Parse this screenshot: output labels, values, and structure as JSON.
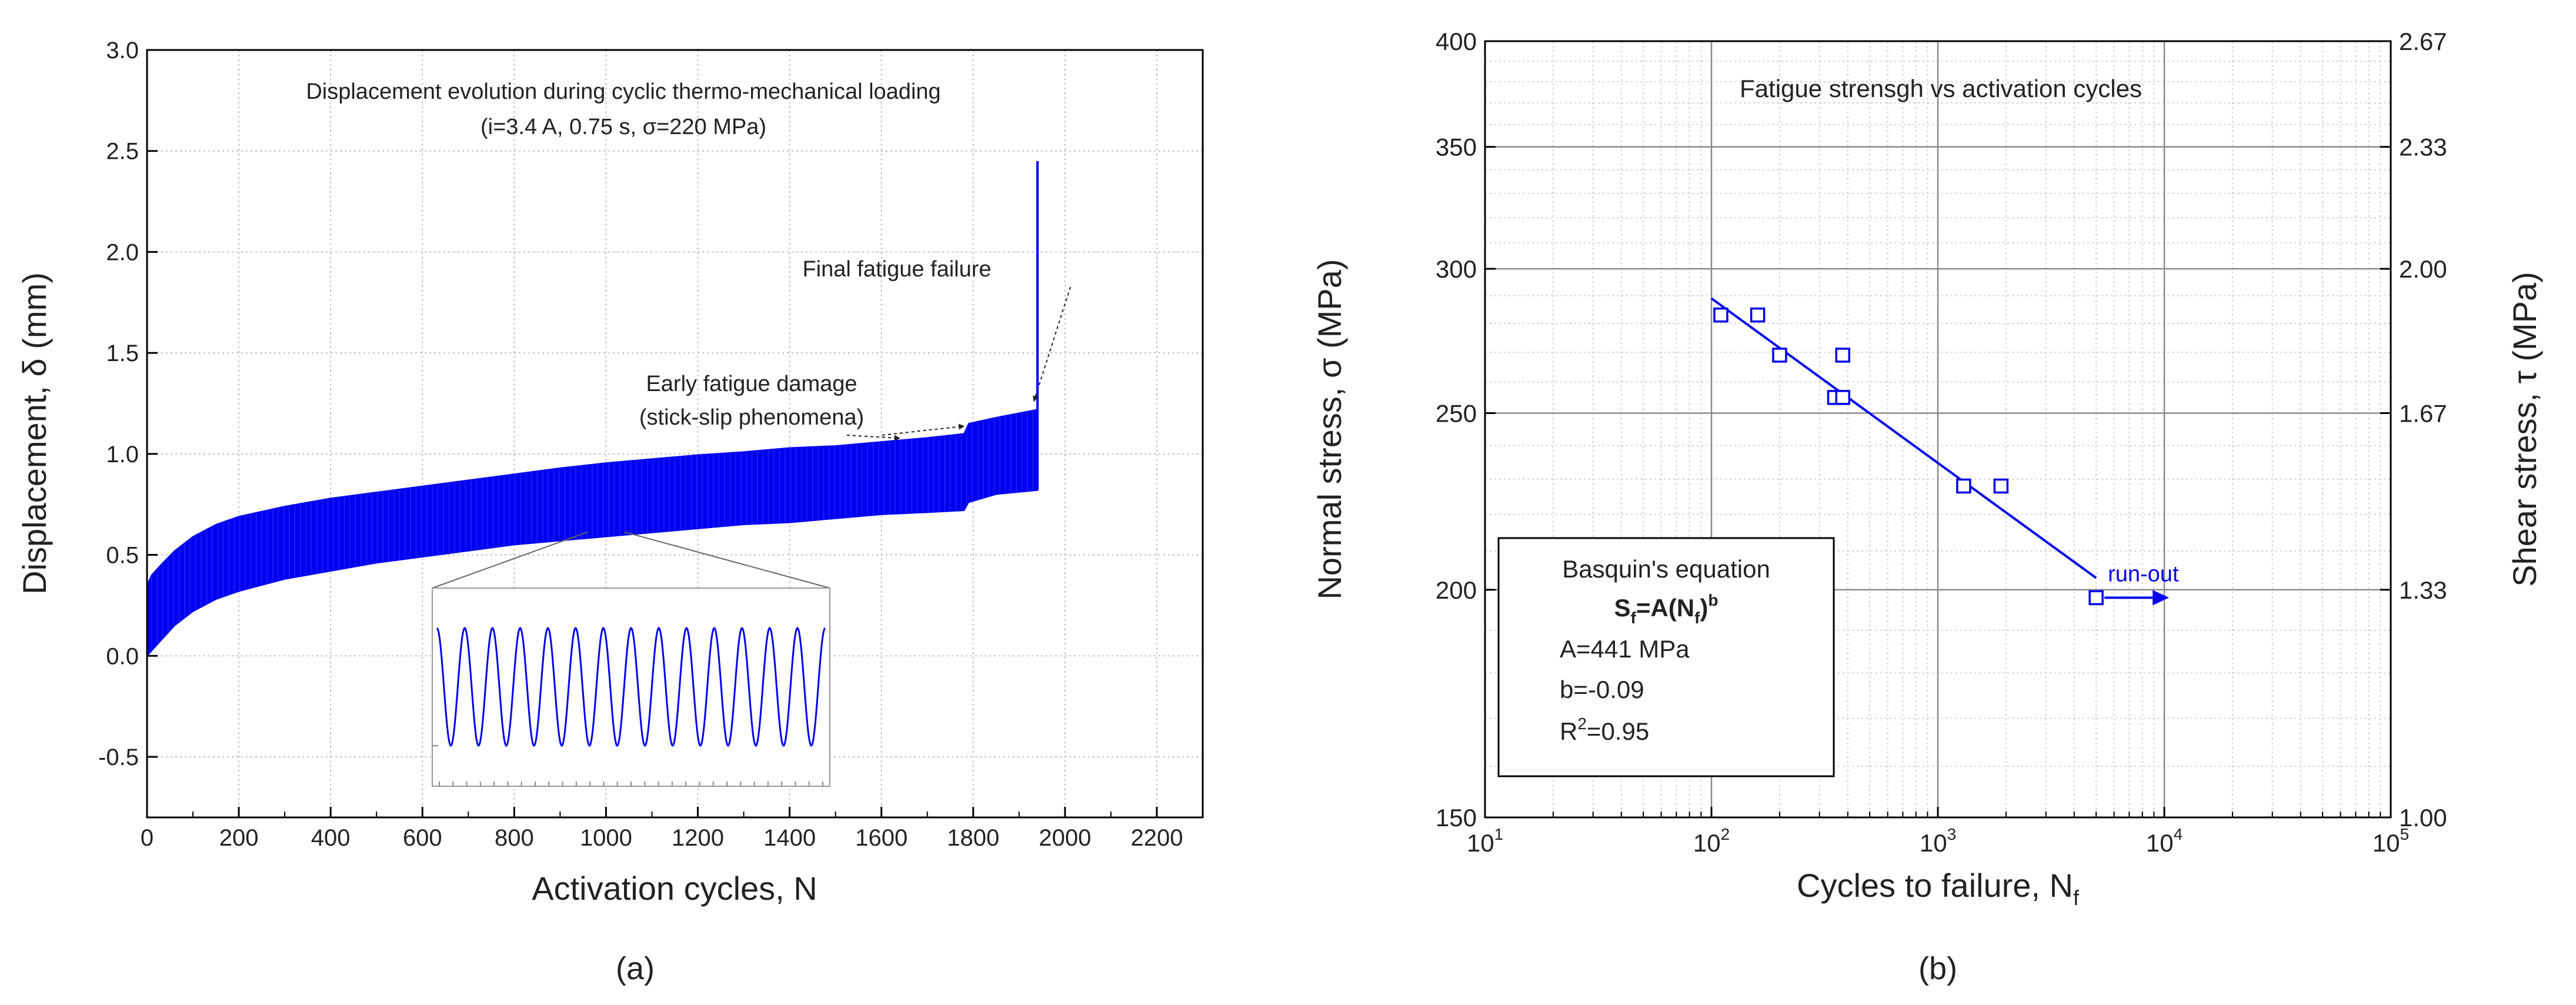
{
  "chart_data": [
    {
      "id": "a",
      "type": "line",
      "panel_label": "(a)",
      "title": "Displacement evolution during cyclic thermo-mechanical loading",
      "subtitle": "(i=3.4 A, 0.75 s, σ=220 MPa)",
      "xlabel": "Activation cycles, N",
      "ylabel": "Displacement, δ (mm)",
      "xlim": [
        0,
        2300
      ],
      "ylim": [
        -0.8,
        3.0
      ],
      "xticks": [
        0,
        200,
        400,
        600,
        800,
        1000,
        1200,
        1400,
        1600,
        1800,
        2000,
        2200
      ],
      "yticks": [
        -0.5,
        0.0,
        0.5,
        1.0,
        1.5,
        2.0,
        2.5,
        3.0
      ],
      "ytick_labels": [
        "-0.5",
        "0.0",
        "0.5",
        "1.0",
        "1.5",
        "2.0",
        "2.5",
        "3.0"
      ],
      "grid": true,
      "color": "#0000ee",
      "series": [
        {
          "name": "upper envelope",
          "x": [
            0,
            10,
            30,
            60,
            100,
            150,
            200,
            300,
            400,
            500,
            600,
            700,
            800,
            900,
            1000,
            1100,
            1200,
            1300,
            1400,
            1500,
            1600,
            1700,
            1780,
            1790,
            1850,
            1940
          ],
          "values": [
            0.35,
            0.4,
            0.45,
            0.52,
            0.59,
            0.65,
            0.69,
            0.74,
            0.78,
            0.81,
            0.84,
            0.87,
            0.9,
            0.93,
            0.955,
            0.975,
            0.995,
            1.01,
            1.03,
            1.04,
            1.06,
            1.08,
            1.1,
            1.15,
            1.18,
            1.22
          ]
        },
        {
          "name": "lower envelope",
          "x": [
            0,
            20,
            40,
            60,
            100,
            150,
            200,
            300,
            400,
            500,
            600,
            700,
            800,
            900,
            1000,
            1100,
            1200,
            1300,
            1400,
            1500,
            1600,
            1700,
            1780,
            1790,
            1850,
            1940
          ],
          "values": [
            0.0,
            0.05,
            0.1,
            0.15,
            0.22,
            0.28,
            0.32,
            0.38,
            0.42,
            0.46,
            0.49,
            0.52,
            0.55,
            0.57,
            0.59,
            0.61,
            0.63,
            0.65,
            0.66,
            0.68,
            0.7,
            0.71,
            0.72,
            0.76,
            0.8,
            0.82
          ]
        }
      ],
      "failure_spike": {
        "x": 1940,
        "y": 2.45
      },
      "annotations": [
        {
          "text": "Final fatigue failure",
          "x": 1940,
          "y": 1.22
        },
        {
          "line1": "Early fatigue damage",
          "line2": "(stick-slip phenomena)",
          "targets": [
            {
              "x": 1640,
              "y": 1.06
            },
            {
              "x": 1780,
              "y": 1.12
            }
          ]
        }
      ],
      "inset": {
        "description": "zoomed sinusoidal displacement cycles",
        "cycles": 14,
        "yticks": [
          -0.5
        ]
      }
    },
    {
      "id": "b",
      "type": "scatter",
      "panel_label": "(b)",
      "title": "Fatigue strensgh vs activation cycles",
      "xlabel": "Cycles to failure, N",
      "xlabel_sub": "f",
      "ylabel": "Normal stress, σ (MPa)",
      "y2label": "Shear stress, τ (MPa)",
      "xscale": "log",
      "yscale": "log",
      "xlim": [
        10,
        100000
      ],
      "ylim": [
        150,
        400
      ],
      "xticks": [
        {
          "value": 10,
          "base": "10",
          "exp": "1"
        },
        {
          "value": 100,
          "base": "10",
          "exp": "2"
        },
        {
          "value": 1000,
          "base": "10",
          "exp": "3"
        },
        {
          "value": 10000,
          "base": "10",
          "exp": "4"
        },
        {
          "value": 100000,
          "base": "10",
          "exp": "5"
        }
      ],
      "yticks": [
        150,
        200,
        250,
        300,
        350,
        400
      ],
      "ytick_labels": [
        "150",
        "200",
        "250",
        "300",
        "350",
        "400"
      ],
      "y2ticks": [
        {
          "value": 150,
          "label": "1.00"
        },
        {
          "value": 200,
          "label": "1.33"
        },
        {
          "value": 250,
          "label": "1.67"
        },
        {
          "value": 300,
          "label": "2.00"
        },
        {
          "value": 350,
          "label": "2.33"
        },
        {
          "value": 400,
          "label": "2.67"
        }
      ],
      "grid": true,
      "color": "#0000ee",
      "points": [
        {
          "x": 110,
          "y": 283
        },
        {
          "x": 160,
          "y": 283
        },
        {
          "x": 200,
          "y": 269
        },
        {
          "x": 380,
          "y": 269
        },
        {
          "x": 350,
          "y": 255
        },
        {
          "x": 380,
          "y": 255
        },
        {
          "x": 1300,
          "y": 228
        },
        {
          "x": 1900,
          "y": 228
        },
        {
          "x": 5000,
          "y": 198
        }
      ],
      "fit_line": {
        "x": [
          100,
          5000
        ],
        "y": [
          289,
          203
        ]
      },
      "runout": {
        "label": "run-out",
        "from": {
          "x": 5000,
          "y": 198
        },
        "to": {
          "x": 10500,
          "y": 198
        }
      },
      "equation_box": {
        "title": "Basquin's equation",
        "formula_S": "S",
        "formula_S_sub": "f",
        "formula_mid": "=A(N",
        "formula_N_sub": "f",
        "formula_close": ")",
        "formula_exp": "b",
        "A_line": "A=441 MPa",
        "b_line": "b=-0.09",
        "r2_base": "R",
        "r2_exp": "2",
        "r2_val": "=0.95"
      }
    }
  ]
}
